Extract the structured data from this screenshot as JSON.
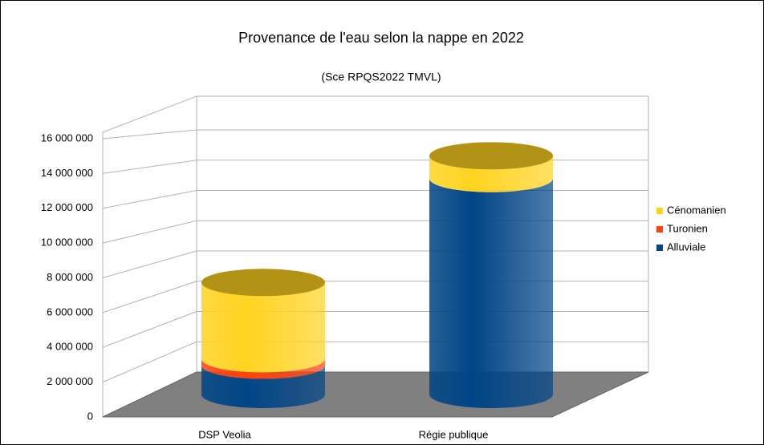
{
  "chart_data": {
    "type": "bar3d",
    "title": "Provenance de l'eau selon la nappe en 2022",
    "subtitle": "(Sce RPQS2022 TMVL)",
    "categories": [
      "DSP Veolia",
      "Régie publique"
    ],
    "series": [
      {
        "name": "Alluviale",
        "color": "#004586",
        "values": [
          1800000,
          13300000
        ]
      },
      {
        "name": "Turonien",
        "color": "#ff420e",
        "values": [
          400000,
          0
        ]
      },
      {
        "name": "Cénomanien",
        "color": "#ffd320",
        "values": [
          4700000,
          1400000
        ]
      }
    ],
    "ylim": [
      0,
      16000000
    ],
    "yticks": [
      {
        "value": 0,
        "label": "0"
      },
      {
        "value": 2000000,
        "label": "2 000 000"
      },
      {
        "value": 4000000,
        "label": "4 000 000"
      },
      {
        "value": 6000000,
        "label": "6 000 000"
      },
      {
        "value": 8000000,
        "label": "8 000 000"
      },
      {
        "value": 10000000,
        "label": "10 000 000"
      },
      {
        "value": 12000000,
        "label": "12 000 000"
      },
      {
        "value": 14000000,
        "label": "14 000 000"
      },
      {
        "value": 16000000,
        "label": "16 000 000"
      }
    ],
    "grid": true,
    "legend": "right"
  }
}
